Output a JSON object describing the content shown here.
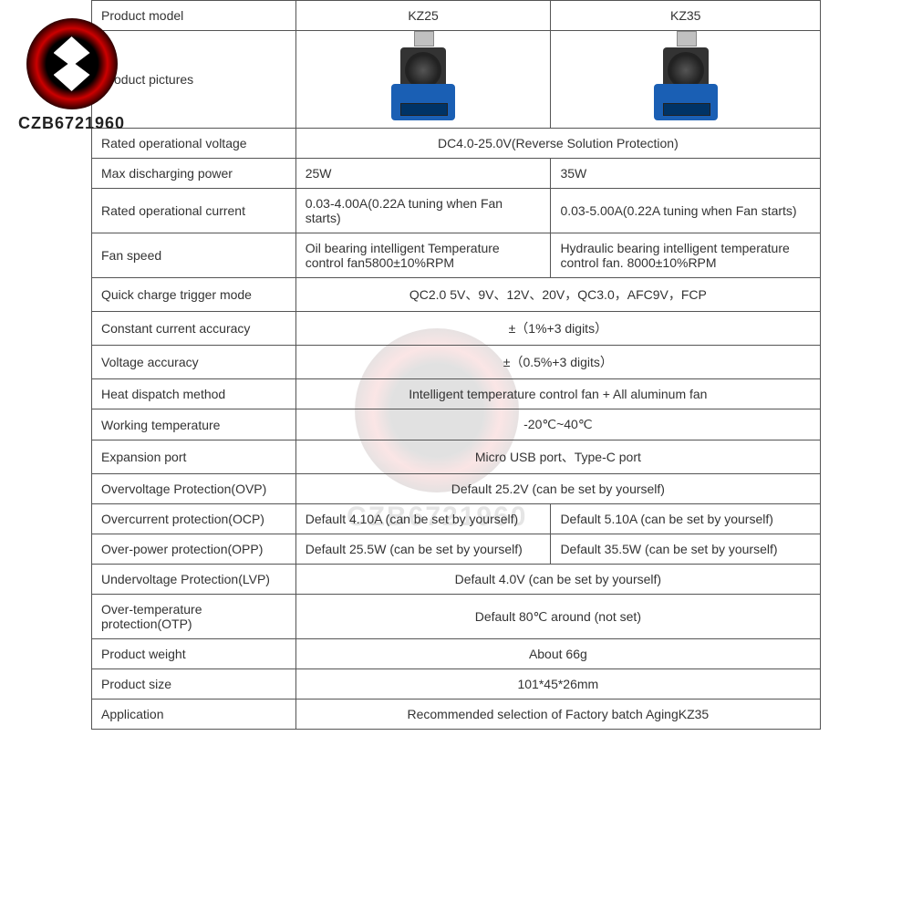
{
  "watermark": "CZB6721960",
  "table": {
    "headers": {
      "label": "Product model",
      "col1": "KZ25",
      "col2": "KZ35"
    },
    "pictures_label": "Product pictures",
    "rows": [
      {
        "label": "Rated operational voltage",
        "span": true,
        "value": "DC4.0-25.0V(Reverse Solution Protection)"
      },
      {
        "label": "Max discharging power",
        "span": false,
        "v1": "25W",
        "v2": "35W"
      },
      {
        "label": "Rated operational current",
        "span": false,
        "v1": "0.03-4.00A(0.22A tuning when Fan starts)",
        "v2": "0.03-5.00A(0.22A tuning when Fan starts)"
      },
      {
        "label": "Fan speed",
        "span": false,
        "v1": "Oil bearing intelligent Temperature control fan5800±10%RPM",
        "v2": "Hydraulic bearing intelligent temperature control fan. 8000±10%RPM"
      },
      {
        "label": "Quick charge trigger mode",
        "span": true,
        "value": "QC2.0 5V、9V、12V、20V，QC3.0，AFC9V，FCP"
      },
      {
        "label": "Constant current accuracy",
        "span": true,
        "value": "±（1%+3 digits）"
      },
      {
        "label": "Voltage accuracy",
        "span": true,
        "value": "±（0.5%+3 digits）"
      },
      {
        "label": "Heat dispatch method",
        "span": true,
        "value": "Intelligent temperature control fan + All aluminum fan"
      },
      {
        "label": "Working temperature",
        "span": true,
        "value": "-20℃~40℃"
      },
      {
        "label": "Expansion port",
        "span": true,
        "value": "Micro USB port、Type-C port"
      },
      {
        "label": "Overvoltage Protection(OVP)",
        "span": true,
        "value": "Default 25.2V (can be set by yourself)"
      },
      {
        "label": "Overcurrent protection(OCP)",
        "span": false,
        "v1": "Default 4.10A (can be set by yourself)",
        "v2": "Default 5.10A (can be set by yourself)"
      },
      {
        "label": "Over-power protection(OPP)",
        "span": false,
        "v1": "Default 25.5W (can be set by yourself)",
        "v2": "Default 35.5W (can be set by yourself)"
      },
      {
        "label": "Undervoltage Protection(LVP)",
        "span": true,
        "value": "Default 4.0V (can be set by yourself)"
      },
      {
        "label": "Over-temperature protection(OTP)",
        "span": true,
        "value": "Default 80℃ around (not set)"
      },
      {
        "label": "Product weight",
        "span": true,
        "value": "About 66g"
      },
      {
        "label": "Product size",
        "span": true,
        "value": "101*45*26mm"
      },
      {
        "label": "Application",
        "span": true,
        "value": "Recommended selection of Factory batch AgingKZ35"
      }
    ]
  }
}
